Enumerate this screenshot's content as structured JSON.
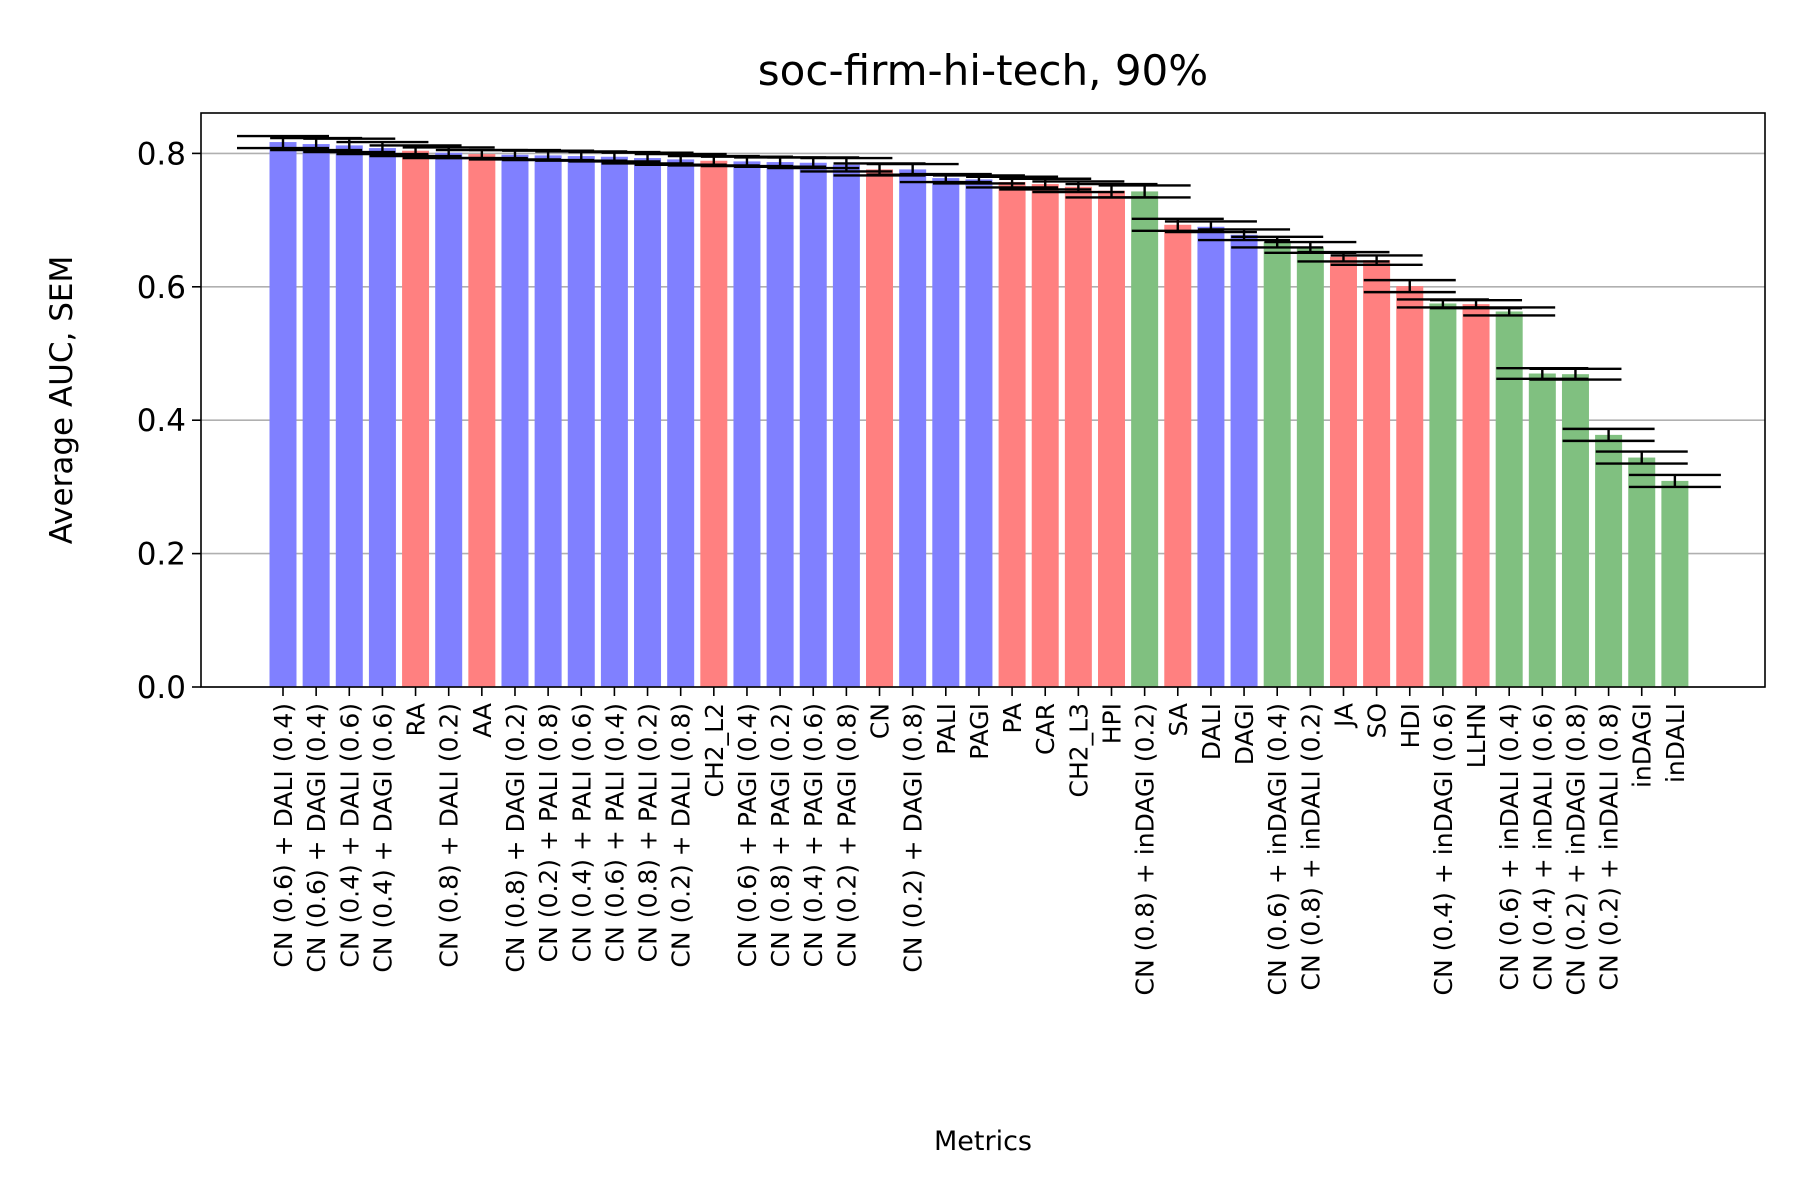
{
  "chart_data": {
    "type": "bar",
    "title": "soc-firm-hi-tech, 90%",
    "xlabel": "Metrics",
    "ylabel": "Average AUC, SEM",
    "ylim": [
      0,
      0.865
    ],
    "yticks": [
      "0.0",
      "0.2",
      "0.4",
      "0.6",
      "0.8"
    ],
    "grid": "y",
    "colors": {
      "blue": "#8080ff",
      "red": "#ff8080",
      "green": "#80c080"
    },
    "categories": [
      "CN (0.6) + DALI (0.4)",
      "CN (0.6) + DAGI (0.4)",
      "CN (0.4) + DALI (0.6)",
      "CN (0.4) + DAGI (0.6)",
      "RA",
      "CN (0.8) + DALI (0.2)",
      "AA",
      "CN (0.8) + DAGI (0.2)",
      "CN (0.2) + PALI (0.8)",
      "CN (0.4) + PALI (0.6)",
      "CN (0.6) + PALI (0.4)",
      "CN (0.8) + PALI (0.2)",
      "CN (0.2) + DALI (0.8)",
      "CH2_L2",
      "CN (0.6) + PAGI (0.4)",
      "CN (0.8) + PAGI (0.2)",
      "CN (0.4) + PAGI (0.6)",
      "CN (0.2) + PAGI (0.8)",
      "CN",
      "CN (0.2) + DAGI (0.8)",
      "PALI",
      "PAGI",
      "PA",
      "CAR",
      "CH2_L3",
      "HPI",
      "CN (0.8) + inDAGI (0.2)",
      "SA",
      "DALI",
      "DAGI",
      "CN (0.6) + inDAGI (0.4)",
      "CN (0.8) + inDALI (0.2)",
      "JA",
      "SO",
      "HDI",
      "CN (0.4) + inDAGI (0.6)",
      "LLHN",
      "CN (0.6) + inDALI (0.4)",
      "CN (0.4) + inDALI (0.6)",
      "CN (0.2) + inDAGI (0.8)",
      "CN (0.2) + inDALI (0.8)",
      "inDAGI",
      "inDALI"
    ],
    "values": [
      0.817,
      0.814,
      0.812,
      0.808,
      0.804,
      0.801,
      0.799,
      0.798,
      0.797,
      0.796,
      0.795,
      0.793,
      0.791,
      0.789,
      0.788,
      0.787,
      0.786,
      0.783,
      0.776,
      0.776,
      0.763,
      0.761,
      0.757,
      0.754,
      0.75,
      0.744,
      0.743,
      0.693,
      0.69,
      0.678,
      0.667,
      0.659,
      0.645,
      0.64,
      0.601,
      0.575,
      0.574,
      0.563,
      0.47,
      0.469,
      0.378,
      0.344,
      0.309
    ],
    "errors": [
      0.009,
      0.009,
      0.01,
      0.009,
      0.008,
      0.008,
      0.006,
      0.007,
      0.007,
      0.007,
      0.007,
      0.008,
      0.008,
      0.007,
      0.007,
      0.007,
      0.008,
      0.01,
      0.009,
      0.008,
      0.006,
      0.006,
      0.008,
      0.008,
      0.008,
      0.01,
      0.009,
      0.009,
      0.008,
      0.008,
      0.008,
      0.008,
      0.007,
      0.007,
      0.009,
      0.006,
      0.006,
      0.006,
      0.008,
      0.008,
      0.009,
      0.009,
      0.009
    ],
    "bar_colors": [
      "blue",
      "blue",
      "blue",
      "blue",
      "red",
      "blue",
      "red",
      "blue",
      "blue",
      "blue",
      "blue",
      "blue",
      "blue",
      "red",
      "blue",
      "blue",
      "blue",
      "blue",
      "red",
      "blue",
      "blue",
      "blue",
      "red",
      "red",
      "red",
      "red",
      "green",
      "red",
      "blue",
      "blue",
      "green",
      "green",
      "red",
      "red",
      "red",
      "green",
      "red",
      "green",
      "green",
      "green",
      "green",
      "green",
      "green"
    ]
  }
}
